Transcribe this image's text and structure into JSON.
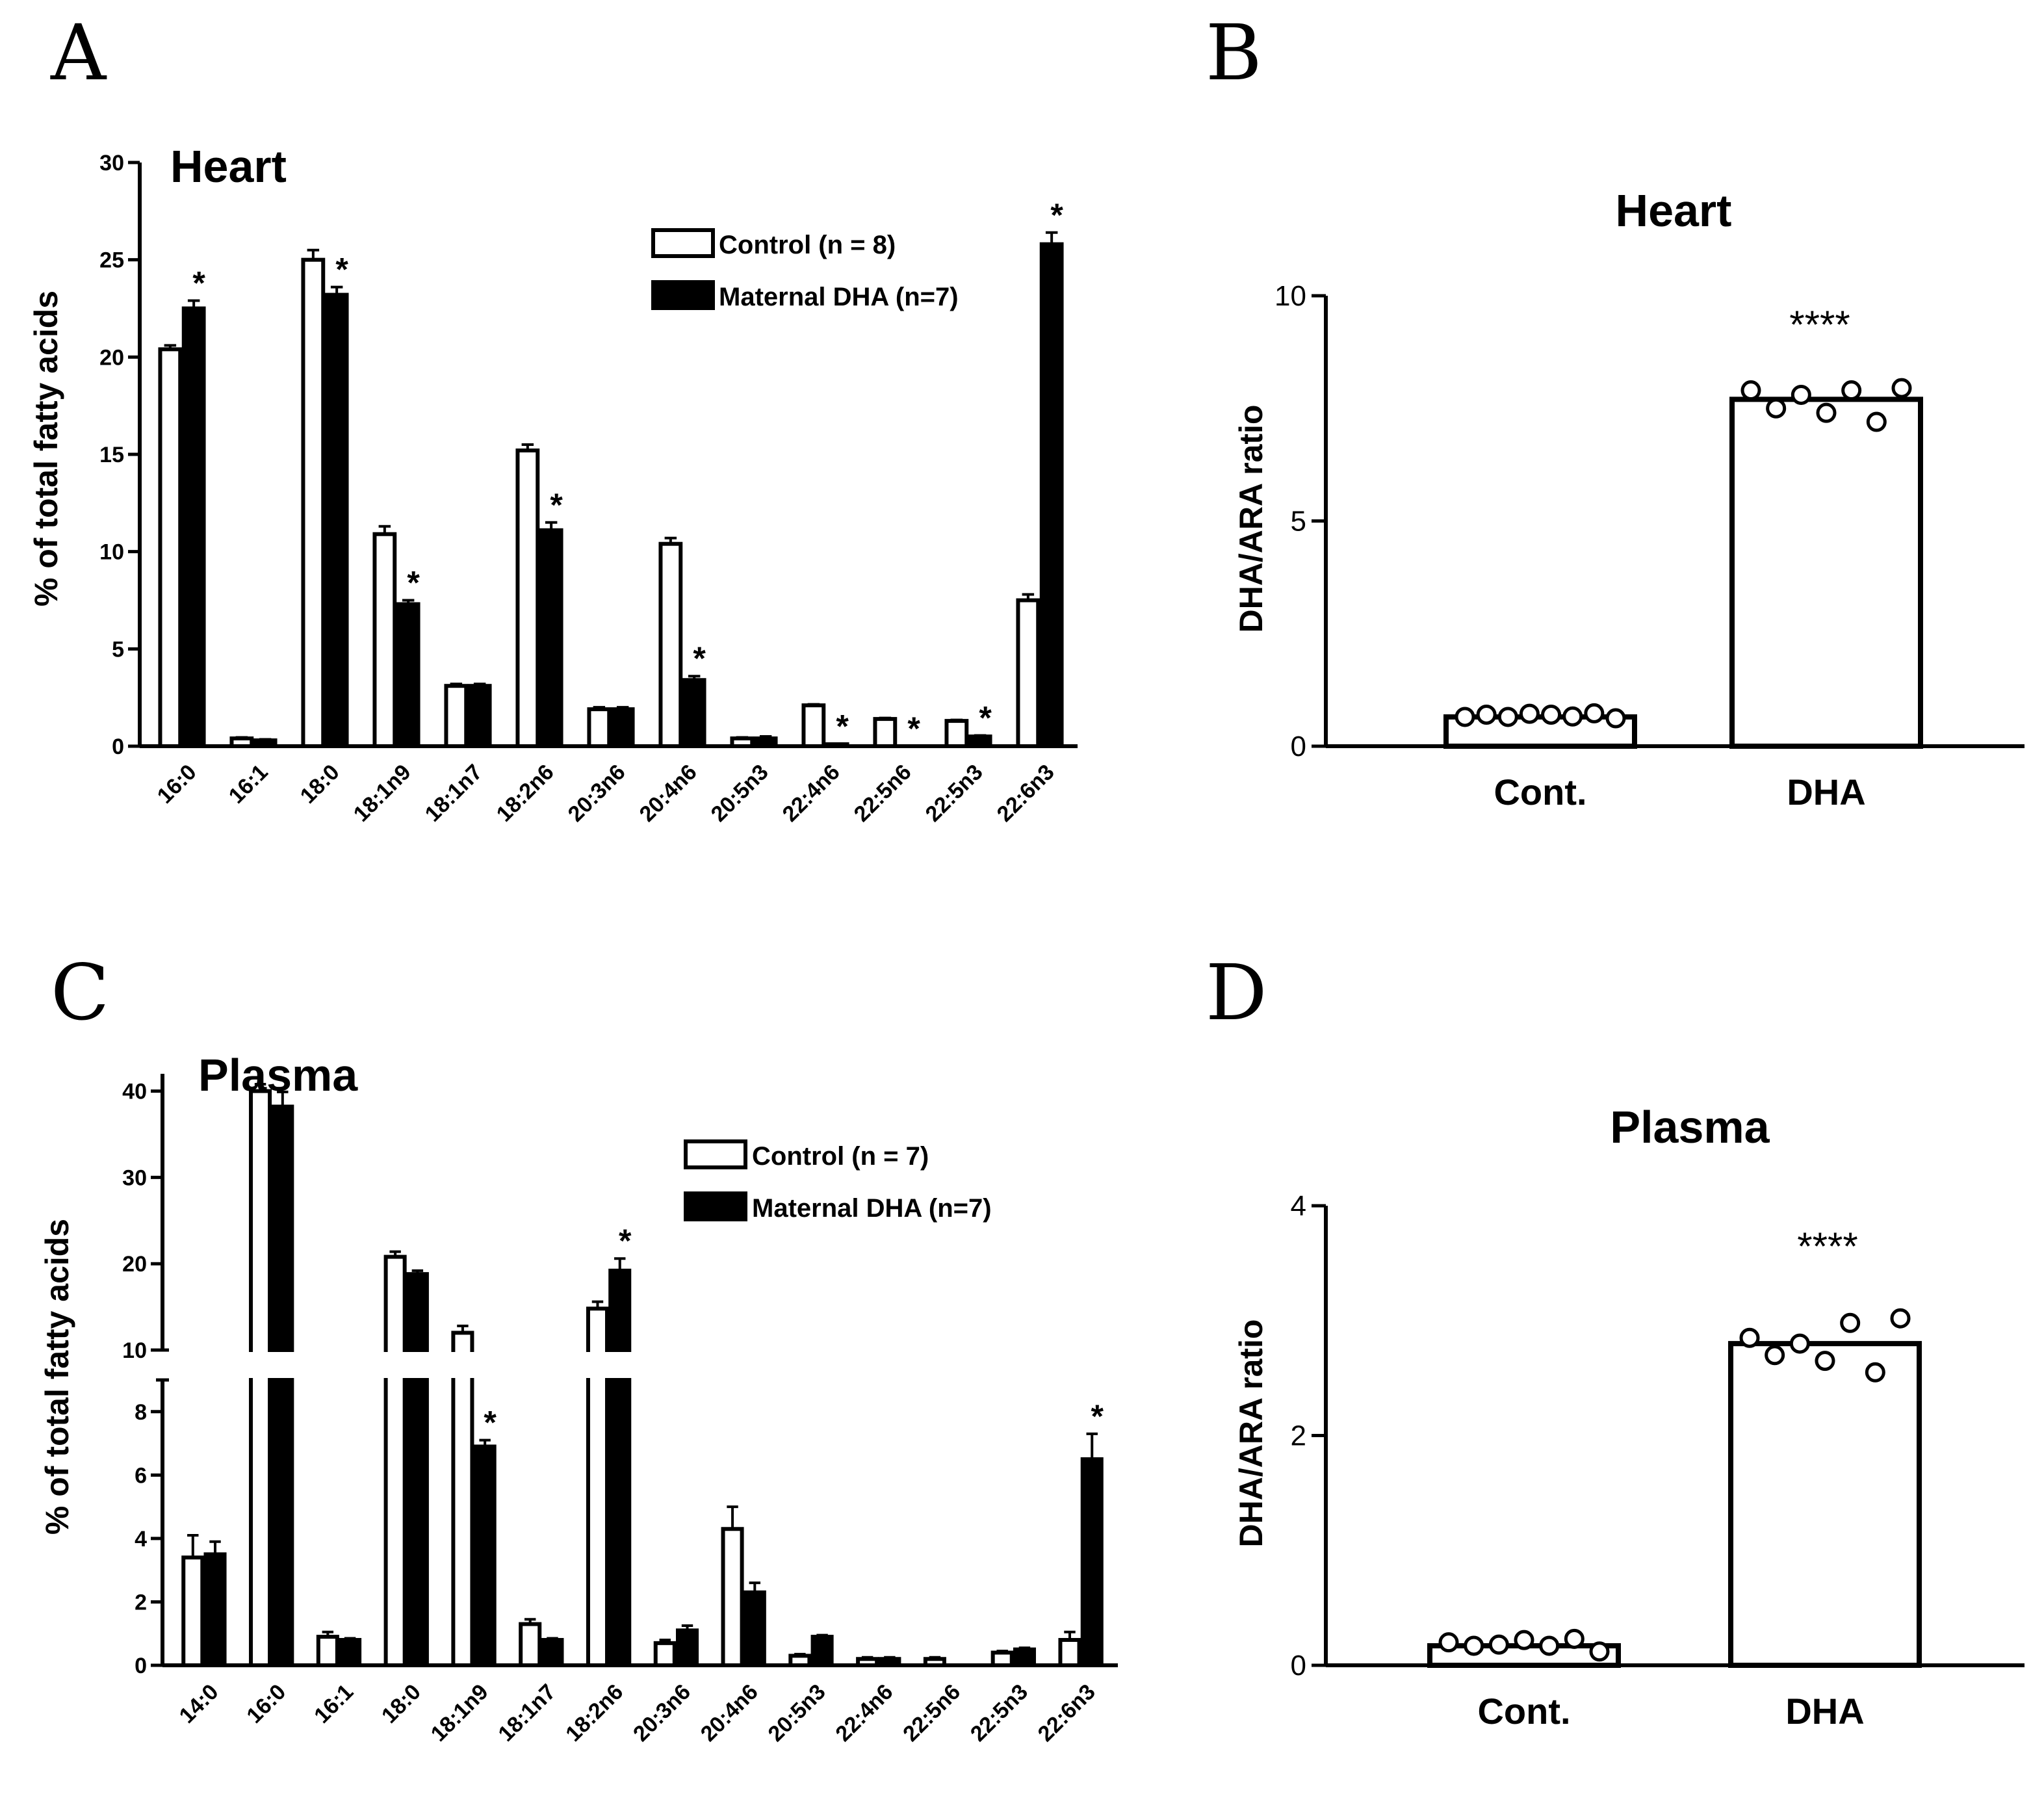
{
  "panels": {
    "A": {
      "letter": "A"
    },
    "B": {
      "letter": "B"
    },
    "C": {
      "letter": "C"
    },
    "D": {
      "letter": "D"
    }
  },
  "chart_data": [
    {
      "id": "A",
      "type": "bar",
      "title": "Heart",
      "xlabel": "",
      "ylabel": "% of total fatty acids",
      "ylim": [
        0,
        30
      ],
      "yticks": [
        "0",
        "5",
        "10",
        "15",
        "20",
        "25",
        "30"
      ],
      "categories": [
        "16:0",
        "16:1",
        "18:0",
        "18:1n9",
        "18:1n7",
        "18:2n6",
        "20:3n6",
        "20:4n6",
        "20:5n3",
        "22:4n6",
        "22:5n6",
        "22:5n3",
        "22:6n3"
      ],
      "legend": [
        "Control (n = 8)",
        "Maternal DHA (n=7)"
      ],
      "legend_position": "top-right",
      "series": [
        {
          "name": "Control (n = 8)",
          "color": "#ffffff",
          "values": [
            20.4,
            0.4,
            25.0,
            10.9,
            3.1,
            15.2,
            1.9,
            10.4,
            0.4,
            2.1,
            1.4,
            1.3,
            7.5
          ],
          "errors": [
            0.2,
            0.05,
            0.5,
            0.4,
            0.1,
            0.3,
            0.1,
            0.3,
            0.05,
            0.05,
            0.05,
            0.05,
            0.3
          ]
        },
        {
          "name": "Maternal DHA (n=7)",
          "color": "#000000",
          "values": [
            22.5,
            0.3,
            23.2,
            7.3,
            3.1,
            11.1,
            1.9,
            3.4,
            0.4,
            0.1,
            0.0,
            0.5,
            25.8
          ],
          "errors": [
            0.4,
            0.05,
            0.4,
            0.2,
            0.1,
            0.4,
            0.1,
            0.2,
            0.1,
            0.02,
            0.0,
            0.05,
            0.6
          ]
        }
      ],
      "significance": [
        "*",
        "",
        "*",
        "*",
        "",
        "*",
        "",
        "*",
        "",
        "*",
        "*",
        "*",
        "*"
      ]
    },
    {
      "id": "B",
      "type": "bar",
      "title": "Heart",
      "xlabel": "",
      "ylabel": "DHA/ARA ratio",
      "ylim": [
        0,
        10
      ],
      "yticks": [
        "0",
        "5",
        "10"
      ],
      "categories": [
        "Cont.",
        "DHA"
      ],
      "values": [
        0.65,
        7.7
      ],
      "points": [
        [
          0.65,
          0.7,
          0.65,
          0.72,
          0.7,
          0.66,
          0.73,
          0.62
        ],
        [
          7.9,
          7.5,
          7.8,
          7.4,
          7.9,
          7.2,
          7.95
        ]
      ],
      "annotation": "****"
    },
    {
      "id": "C",
      "type": "bar",
      "title": "Plasma",
      "xlabel": "",
      "ylabel": "% of total fatty acids",
      "ylim_lower": [
        0,
        9
      ],
      "ylim_upper": [
        10,
        42
      ],
      "yticks_lower": [
        "0",
        "2",
        "4",
        "6",
        "8"
      ],
      "yticks_upper": [
        "10",
        "20",
        "30",
        "40"
      ],
      "categories": [
        "14:0",
        "16:0",
        "16:1",
        "18:0",
        "18:1n9",
        "18:1n7",
        "18:2n6",
        "20:3n6",
        "20:4n6",
        "20:5n3",
        "22:4n6",
        "22:5n6",
        "22:5n3",
        "22:6n3"
      ],
      "legend": [
        "Control (n = 7)",
        "Maternal DHA (n=7)"
      ],
      "legend_position": "top-right",
      "series": [
        {
          "name": "Control (n = 7)",
          "color": "#ffffff",
          "values": [
            3.4,
            40.0,
            0.9,
            20.8,
            12.0,
            1.3,
            14.8,
            0.7,
            4.3,
            0.3,
            0.2,
            0.2,
            0.4,
            0.8
          ],
          "errors": [
            0.7,
            0.8,
            0.15,
            0.6,
            0.8,
            0.15,
            0.8,
            0.1,
            0.7,
            0.05,
            0.05,
            0.05,
            0.05,
            0.25
          ]
        },
        {
          "name": "Maternal DHA (n=7)",
          "color": "#000000",
          "values": [
            3.5,
            38.2,
            0.8,
            18.8,
            6.9,
            0.8,
            19.2,
            1.1,
            2.3,
            0.9,
            0.2,
            0.0,
            0.5,
            6.5
          ],
          "errors": [
            0.4,
            1.7,
            0.05,
            0.4,
            0.2,
            0.05,
            1.4,
            0.15,
            0.3,
            0.05,
            0.05,
            0.0,
            0.05,
            0.8
          ]
        }
      ],
      "significance": [
        "",
        "",
        "",
        "",
        "*",
        "",
        "*",
        "",
        "",
        "",
        "",
        "",
        "",
        "*"
      ]
    },
    {
      "id": "D",
      "type": "bar",
      "title": "Plasma",
      "xlabel": "",
      "ylabel": "DHA/ARA ratio",
      "ylim": [
        0,
        4
      ],
      "yticks": [
        "0",
        "2",
        "4"
      ],
      "categories": [
        "Cont.",
        "DHA"
      ],
      "values": [
        0.17,
        2.8
      ],
      "points": [
        [
          0.2,
          0.17,
          0.18,
          0.22,
          0.17,
          0.23,
          0.12
        ],
        [
          2.85,
          2.7,
          2.8,
          2.65,
          2.98,
          2.55,
          3.02
        ]
      ],
      "annotation": "****"
    }
  ]
}
